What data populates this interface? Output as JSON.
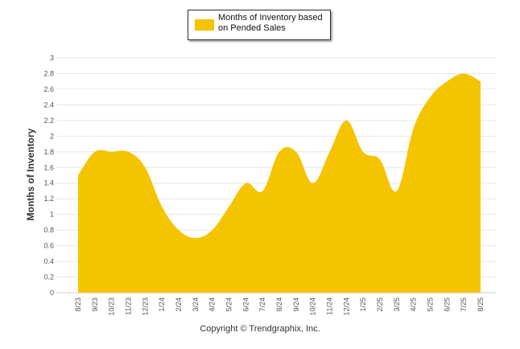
{
  "legend": {
    "label": "Months of Inventory based on Pended Sales",
    "color": "#f5c400"
  },
  "footer": {
    "copyright": "Copyright © Trendgraphix, Inc."
  },
  "chart_data": {
    "type": "area",
    "ylabel": "Months of Inventory",
    "xlabel": "",
    "ylim": [
      0,
      3
    ],
    "yticks": [
      0,
      0.2,
      0.4,
      0.6,
      0.8,
      1,
      1.2,
      1.4,
      1.6,
      1.8,
      2,
      2.2,
      2.4,
      2.6,
      2.8,
      3
    ],
    "grid": true,
    "legend_position": "top-center",
    "categories": [
      "8/23",
      "9/23",
      "10/23",
      "11/23",
      "12/23",
      "1/24",
      "2/24",
      "3/24",
      "4/24",
      "5/24",
      "6/24",
      "7/24",
      "8/24",
      "9/24",
      "10/24",
      "11/24",
      "12/24",
      "1/25",
      "2/25",
      "3/25",
      "4/25",
      "5/25",
      "6/25",
      "7/25",
      "8/25"
    ],
    "series": [
      {
        "name": "Months of Inventory based on Pended Sales",
        "color": "#f5c400",
        "values": [
          1.5,
          1.8,
          1.8,
          1.8,
          1.6,
          1.1,
          0.8,
          0.7,
          0.8,
          1.1,
          1.4,
          1.3,
          1.8,
          1.8,
          1.4,
          1.8,
          2.2,
          1.8,
          1.7,
          1.3,
          2.1,
          2.5,
          2.7,
          2.8,
          2.7
        ]
      }
    ]
  }
}
